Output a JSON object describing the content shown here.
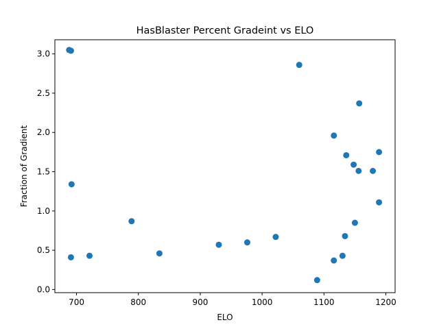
{
  "chart_data": {
    "type": "scatter",
    "title": "HasBlaster Percent Gradeint vs ELO",
    "xlabel": "ELO",
    "ylabel": "Fraction of Gradient",
    "xlim": [
      665,
      1215
    ],
    "ylim": [
      -0.04,
      3.18
    ],
    "xticks": [
      700,
      800,
      900,
      1000,
      1100,
      1200
    ],
    "xtick_labels": [
      "700",
      "800",
      "900",
      "1000",
      "1100",
      "1200"
    ],
    "yticks": [
      0.0,
      0.5,
      1.0,
      1.5,
      2.0,
      2.5,
      3.0
    ],
    "ytick_labels": [
      "0.0",
      "0.5",
      "1.0",
      "1.5",
      "2.0",
      "2.5",
      "3.0"
    ],
    "grid": false,
    "marker_color": "#1f77b4",
    "points": [
      {
        "x": 688,
        "y": 3.05
      },
      {
        "x": 691,
        "y": 3.04
      },
      {
        "x": 692,
        "y": 1.34
      },
      {
        "x": 691,
        "y": 0.41
      },
      {
        "x": 721,
        "y": 0.43
      },
      {
        "x": 789,
        "y": 0.87
      },
      {
        "x": 834,
        "y": 0.46
      },
      {
        "x": 930,
        "y": 0.57
      },
      {
        "x": 976,
        "y": 0.6
      },
      {
        "x": 1022,
        "y": 0.67
      },
      {
        "x": 1060,
        "y": 2.86
      },
      {
        "x": 1089,
        "y": 0.12
      },
      {
        "x": 1116,
        "y": 1.96
      },
      {
        "x": 1116,
        "y": 0.37
      },
      {
        "x": 1130,
        "y": 0.43
      },
      {
        "x": 1134,
        "y": 0.68
      },
      {
        "x": 1136,
        "y": 1.71
      },
      {
        "x": 1148,
        "y": 1.59
      },
      {
        "x": 1150,
        "y": 0.85
      },
      {
        "x": 1156,
        "y": 1.51
      },
      {
        "x": 1157,
        "y": 2.37
      },
      {
        "x": 1179,
        "y": 1.51
      },
      {
        "x": 1189,
        "y": 1.75
      },
      {
        "x": 1189,
        "y": 1.11
      }
    ]
  }
}
